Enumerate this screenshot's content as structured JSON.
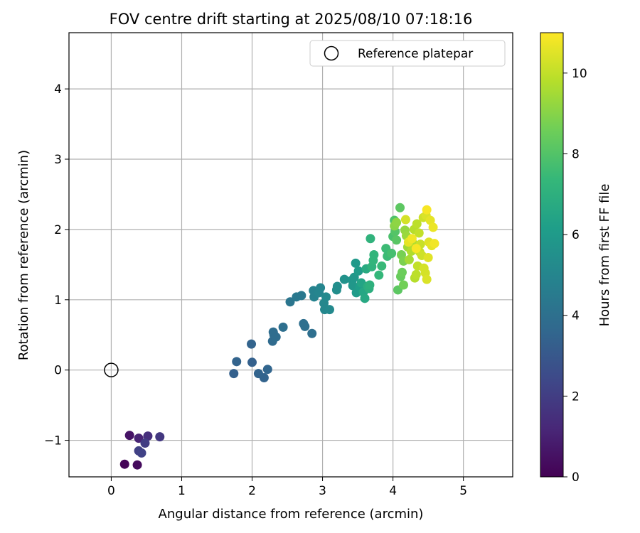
{
  "chart_data": {
    "type": "scatter",
    "title": "FOV centre drift starting at 2025/08/10 07:18:16",
    "xlabel": "Angular distance from reference (arcmin)",
    "ylabel": "Rotation from reference (arcmin)",
    "xlim": [
      -0.6,
      5.7
    ],
    "ylim": [
      -1.52,
      4.8
    ],
    "xticks": [
      0,
      1,
      2,
      3,
      4,
      5
    ],
    "yticks": [
      -1,
      0,
      1,
      2,
      3,
      4
    ],
    "grid": true,
    "legend": {
      "placement": "top-right",
      "entries": [
        "Reference platepar"
      ]
    },
    "reference_point": {
      "x": 0,
      "y": 0,
      "label": "Reference platepar"
    },
    "colorbar": {
      "label": "Hours from first FF file",
      "colormap": "viridis",
      "range": [
        0,
        11
      ],
      "ticks": [
        0,
        2,
        4,
        6,
        8,
        10
      ]
    },
    "point_colors": {
      "viridis_stops": [
        "#440154",
        "#482878",
        "#3e4989",
        "#31688e",
        "#26828e",
        "#1f9e89",
        "#35b779",
        "#6ece58",
        "#b5de2b",
        "#fde725"
      ]
    },
    "points": [
      [
        0.19,
        -1.34,
        0.1
      ],
      [
        0.37,
        -1.35,
        0.3
      ],
      [
        0.26,
        -0.93,
        0.6
      ],
      [
        0.39,
        -0.97,
        1.1
      ],
      [
        0.52,
        -0.94,
        1.5
      ],
      [
        0.69,
        -0.95,
        1.8
      ],
      [
        0.48,
        -1.04,
        2.0
      ],
      [
        0.39,
        -1.15,
        2.1
      ],
      [
        0.43,
        -1.18,
        2.2
      ],
      [
        1.74,
        -0.05,
        3.4
      ],
      [
        1.78,
        0.12,
        3.5
      ],
      [
        1.99,
        0.37,
        3.5
      ],
      [
        2.0,
        0.11,
        3.4
      ],
      [
        2.09,
        -0.05,
        3.5
      ],
      [
        2.17,
        -0.11,
        3.5
      ],
      [
        2.22,
        0.01,
        3.6
      ],
      [
        2.29,
        0.41,
        3.8
      ],
      [
        2.3,
        0.54,
        3.9
      ],
      [
        2.31,
        0.5,
        3.9
      ],
      [
        2.34,
        0.47,
        3.9
      ],
      [
        2.44,
        0.61,
        4.0
      ],
      [
        2.54,
        0.97,
        4.3
      ],
      [
        2.63,
        1.04,
        4.4
      ],
      [
        2.7,
        1.06,
        4.4
      ],
      [
        2.73,
        0.66,
        4.0
      ],
      [
        2.75,
        0.62,
        4.0
      ],
      [
        2.85,
        0.52,
        4.0
      ],
      [
        2.87,
        1.13,
        4.9
      ],
      [
        2.88,
        1.04,
        4.9
      ],
      [
        2.95,
        1.1,
        5.0
      ],
      [
        2.97,
        1.17,
        5.0
      ],
      [
        3.02,
        0.95,
        5.1
      ],
      [
        3.03,
        0.86,
        5.1
      ],
      [
        3.05,
        1.04,
        5.2
      ],
      [
        3.1,
        0.86,
        5.2
      ],
      [
        3.2,
        1.14,
        5.4
      ],
      [
        3.21,
        1.19,
        5.4
      ],
      [
        3.31,
        1.29,
        5.6
      ],
      [
        3.42,
        1.28,
        5.7
      ],
      [
        3.43,
        1.2,
        5.8
      ],
      [
        3.45,
        1.32,
        5.8
      ],
      [
        3.47,
        1.52,
        5.9
      ],
      [
        3.48,
        1.1,
        6.0
      ],
      [
        3.51,
        1.41,
        6.0
      ],
      [
        3.53,
        1.18,
        6.1
      ],
      [
        3.55,
        1.24,
        6.4
      ],
      [
        3.58,
        1.11,
        6.5
      ],
      [
        3.6,
        1.02,
        6.6
      ],
      [
        3.62,
        1.44,
        6.7
      ],
      [
        3.64,
        1.19,
        6.8
      ],
      [
        3.66,
        1.16,
        6.9
      ],
      [
        3.67,
        1.21,
        7.0
      ],
      [
        3.68,
        1.87,
        7.1
      ],
      [
        3.7,
        1.47,
        7.1
      ],
      [
        3.72,
        1.56,
        7.2
      ],
      [
        3.73,
        1.64,
        7.2
      ],
      [
        3.8,
        1.35,
        7.3
      ],
      [
        3.84,
        1.48,
        7.4
      ],
      [
        3.9,
        1.73,
        7.5
      ],
      [
        3.92,
        1.62,
        7.5
      ],
      [
        3.98,
        1.66,
        7.7
      ],
      [
        4.0,
        1.9,
        7.8
      ],
      [
        4.02,
        2.13,
        7.9
      ],
      [
        4.03,
        1.97,
        8.0
      ],
      [
        4.05,
        1.85,
        8.1
      ],
      [
        4.07,
        1.14,
        8.2
      ],
      [
        4.1,
        2.31,
        8.2
      ],
      [
        4.11,
        1.33,
        8.4
      ],
      [
        4.13,
        1.39,
        8.5
      ],
      [
        4.15,
        1.21,
        8.6
      ],
      [
        4.12,
        1.64,
        8.7
      ],
      [
        4.15,
        1.55,
        8.8
      ],
      [
        4.02,
        2.05,
        9.0
      ],
      [
        4.05,
        2.1,
        9.1
      ],
      [
        4.17,
        1.99,
        9.2
      ],
      [
        4.19,
        1.91,
        9.3
      ],
      [
        4.21,
        1.75,
        9.4
      ],
      [
        4.23,
        1.57,
        9.5
      ],
      [
        4.24,
        1.84,
        9.6
      ],
      [
        4.26,
        1.69,
        9.7
      ],
      [
        4.28,
        1.81,
        9.7
      ],
      [
        4.3,
        2.0,
        9.8
      ],
      [
        4.31,
        1.31,
        9.8
      ],
      [
        4.33,
        1.36,
        9.9
      ],
      [
        4.34,
        2.08,
        9.9
      ],
      [
        4.35,
        1.48,
        10.0
      ],
      [
        4.37,
        1.95,
        10.0
      ],
      [
        4.38,
        1.68,
        10.1
      ],
      [
        4.39,
        1.79,
        10.1
      ],
      [
        4.41,
        1.63,
        10.2
      ],
      [
        4.43,
        2.17,
        10.2
      ],
      [
        4.44,
        1.45,
        10.3
      ],
      [
        4.46,
        1.38,
        10.3
      ],
      [
        4.47,
        2.2,
        10.4
      ],
      [
        4.48,
        1.29,
        10.4
      ],
      [
        4.5,
        1.6,
        10.5
      ],
      [
        4.51,
        1.82,
        10.5
      ],
      [
        4.53,
        2.13,
        10.6
      ],
      [
        4.55,
        1.77,
        10.6
      ],
      [
        4.57,
        2.03,
        10.7
      ],
      [
        4.59,
        1.8,
        10.8
      ],
      [
        4.48,
        2.28,
        10.9
      ],
      [
        4.18,
        2.14,
        10.3
      ],
      [
        4.22,
        1.82,
        10.6
      ],
      [
        4.27,
        1.87,
        10.8
      ],
      [
        4.33,
        1.73,
        10.9
      ]
    ]
  }
}
